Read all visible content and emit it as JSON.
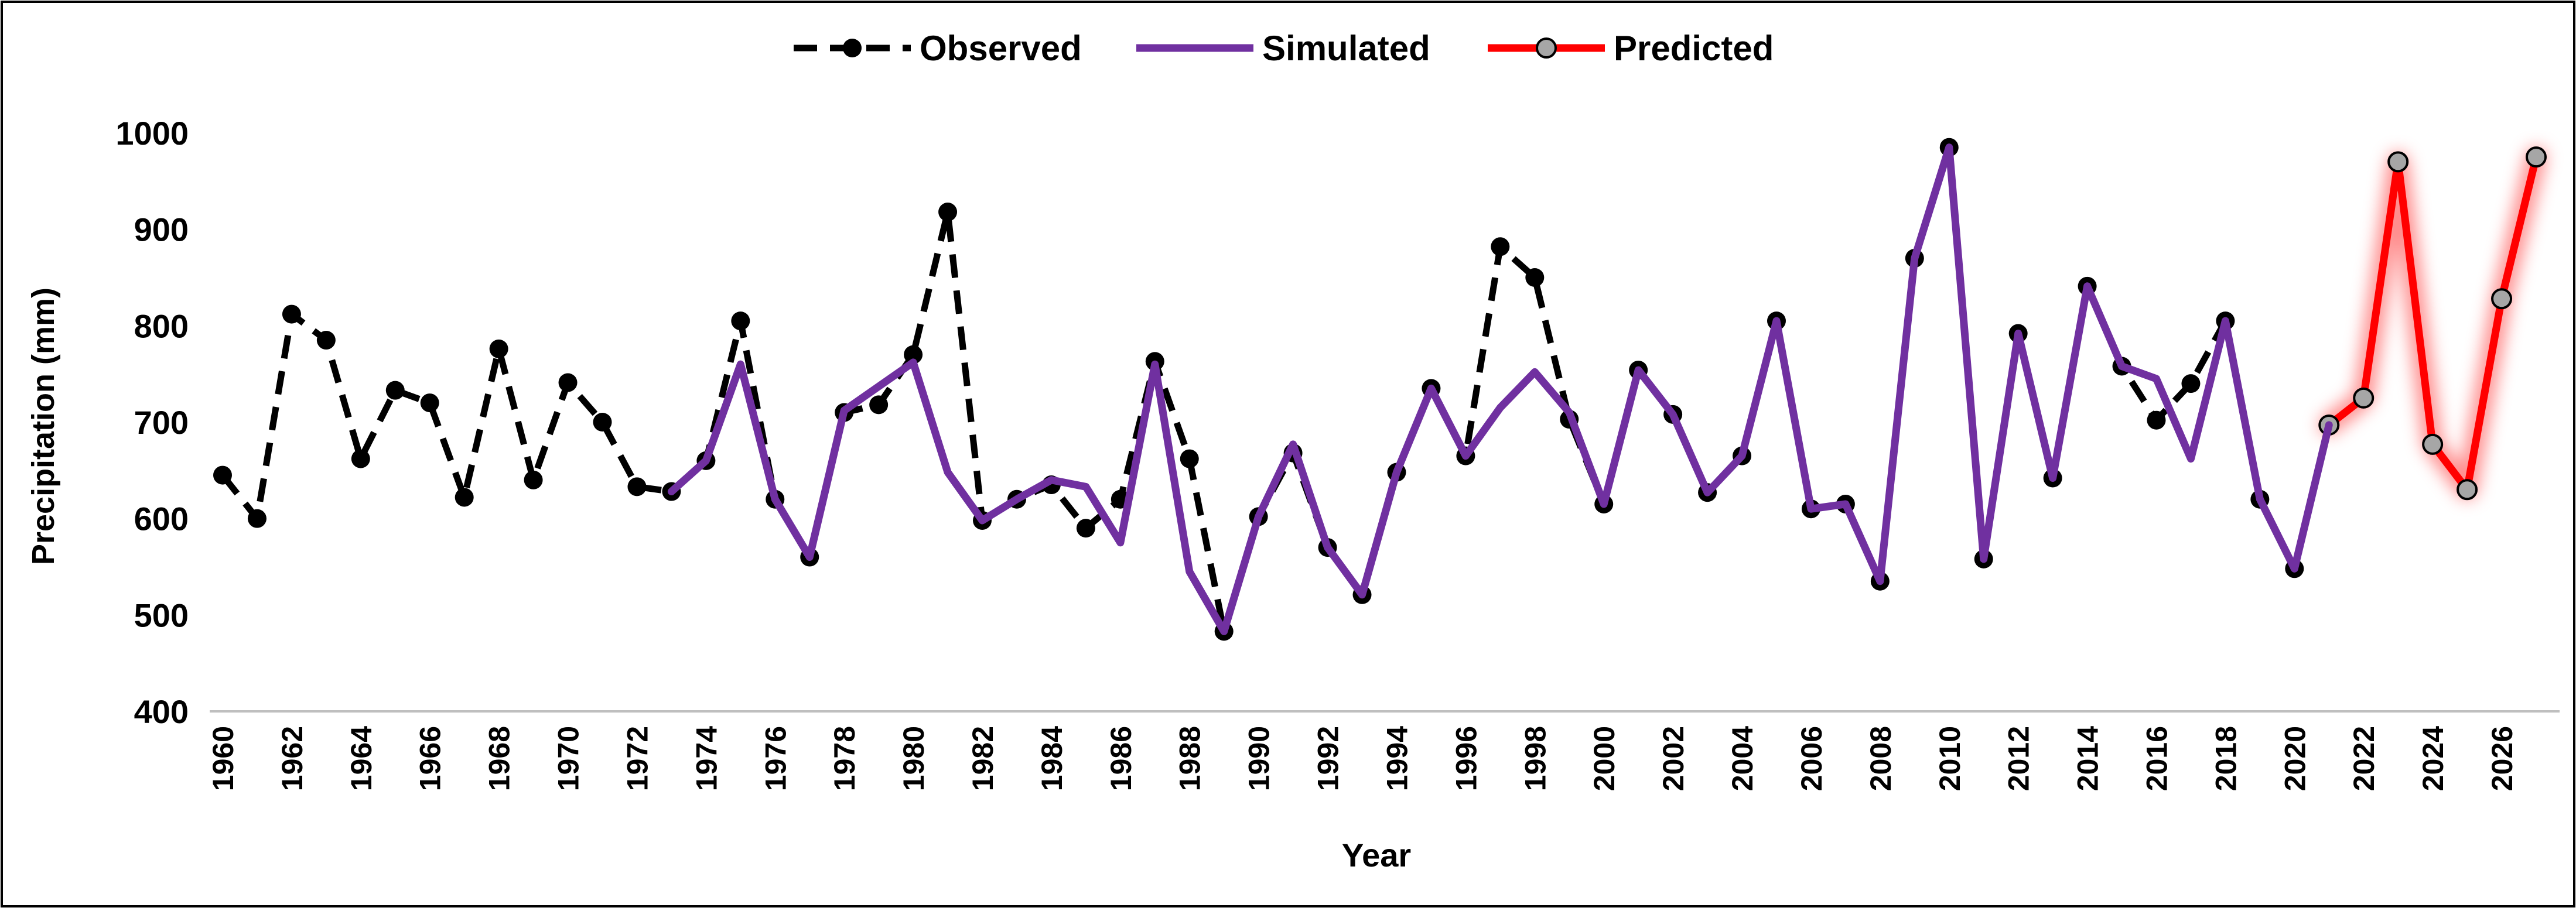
{
  "chart_data": {
    "type": "line",
    "title": "",
    "xlabel": "Year",
    "ylabel": "Precipitation (mm)",
    "ylim": [
      400,
      1000
    ],
    "yticks": [
      400,
      500,
      600,
      700,
      800,
      900,
      1000
    ],
    "xlim": [
      1960,
      2027
    ],
    "xticks": [
      1960,
      1962,
      1964,
      1966,
      1968,
      1970,
      1972,
      1974,
      1976,
      1978,
      1980,
      1982,
      1984,
      1986,
      1988,
      1990,
      1992,
      1994,
      1996,
      1998,
      2000,
      2002,
      2004,
      2006,
      2008,
      2010,
      2012,
      2014,
      2016,
      2018,
      2020,
      2022,
      2024,
      2026
    ],
    "legend_position": "top-center",
    "series": [
      {
        "name": "Observed",
        "color": "#000000",
        "style": "dashed-markers",
        "x": [
          1960,
          1961,
          1962,
          1963,
          1964,
          1965,
          1966,
          1967,
          1968,
          1969,
          1970,
          1971,
          1972,
          1973,
          1974,
          1975,
          1976,
          1977,
          1978,
          1979,
          1980,
          1981,
          1982,
          1983,
          1984,
          1985,
          1986,
          1987,
          1988,
          1989,
          1990,
          1991,
          1992,
          1993,
          1994,
          1995,
          1996,
          1997,
          1998,
          1999,
          2000,
          2001,
          2002,
          2003,
          2004,
          2005,
          2006,
          2007,
          2008,
          2009,
          2010,
          2011,
          2012,
          2013,
          2014,
          2015,
          2016,
          2017,
          2018,
          2019,
          2020
        ],
        "values": [
          645,
          600,
          812,
          785,
          662,
          733,
          720,
          622,
          776,
          640,
          741,
          700,
          633,
          628,
          660,
          805,
          620,
          560,
          710,
          718,
          770,
          918,
          598,
          620,
          635,
          590,
          620,
          763,
          662,
          483,
          602,
          668,
          570,
          521,
          648,
          735,
          665,
          882,
          850,
          703,
          615,
          754,
          708,
          627,
          665,
          805,
          610,
          615,
          535,
          870,
          985,
          558,
          792,
          642,
          841,
          758,
          702,
          740,
          805,
          620,
          548
        ]
      },
      {
        "name": "Simulated",
        "color": "#7030A0",
        "style": "solid",
        "x": [
          1973,
          1974,
          1975,
          1976,
          1977,
          1978,
          1979,
          1980,
          1981,
          1982,
          1983,
          1984,
          1985,
          1986,
          1987,
          1988,
          1989,
          1990,
          1991,
          1992,
          1993,
          1994,
          1995,
          1996,
          1997,
          1998,
          1999,
          2000,
          2001,
          2002,
          2003,
          2004,
          2005,
          2006,
          2007,
          2008,
          2009,
          2010,
          2011,
          2012,
          2013,
          2014,
          2015,
          2016,
          2017,
          2018,
          2019,
          2020,
          2021
        ],
        "values": [
          628,
          660,
          760,
          620,
          560,
          712,
          737,
          762,
          648,
          598,
          620,
          640,
          633,
          575,
          760,
          545,
          483,
          602,
          677,
          570,
          521,
          648,
          735,
          665,
          715,
          752,
          710,
          615,
          754,
          708,
          627,
          665,
          805,
          610,
          615,
          535,
          870,
          985,
          558,
          792,
          642,
          841,
          758,
          745,
          662,
          805,
          620,
          548,
          697
        ]
      },
      {
        "name": "Predicted",
        "color": "#FF0000",
        "marker_color": "#A6A6A6",
        "style": "solid-markers-glow",
        "x": [
          2021,
          2022,
          2023,
          2024,
          2025,
          2026,
          2027
        ],
        "values": [
          697,
          725,
          970,
          677,
          630,
          828,
          975
        ]
      }
    ]
  }
}
